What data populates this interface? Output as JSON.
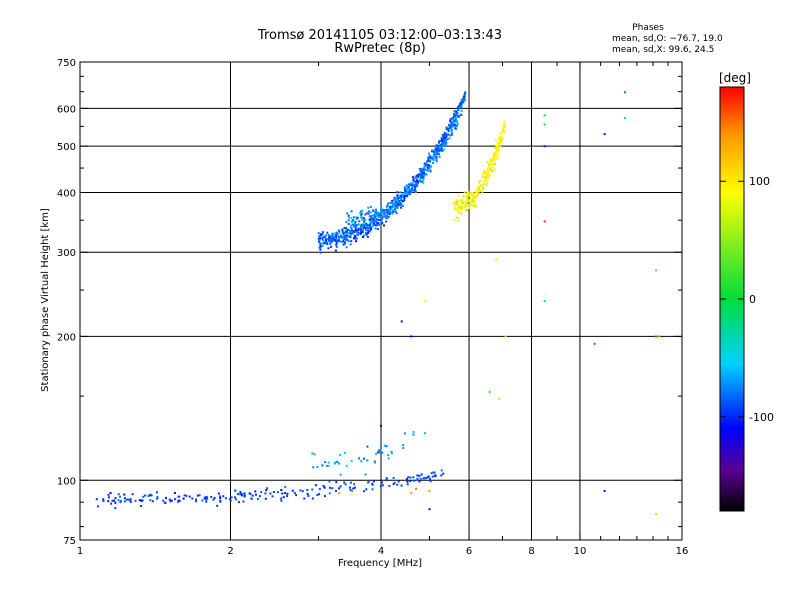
{
  "chart_data": {
    "type": "scatter",
    "title": "Tromsø 20141105 03:12:00–03:13:43",
    "subtitle": "RwPretec (8p)",
    "xlabel": "Frequency [MHz]",
    "ylabel": "Stationary phase Virtual Height [km]",
    "x_scale": "log",
    "y_scale": "log",
    "xlim": [
      1,
      16
    ],
    "ylim": [
      75,
      750
    ],
    "x_ticks": [
      1,
      2,
      4,
      6,
      8,
      10,
      16
    ],
    "y_ticks": [
      75,
      100,
      200,
      300,
      400,
      500,
      600,
      750
    ],
    "grid": true,
    "phases_box": {
      "title": "Phases",
      "line1": "mean, sd,O: −76.7, 19.0",
      "line2": "mean, sd,X: 99.6, 24.5"
    },
    "colorbar": {
      "label": "[deg]",
      "ticks": [
        100,
        0,
        -100
      ],
      "range": [
        -180,
        180
      ],
      "colormap": "rainbow"
    },
    "layers": [
      {
        "name": "",
        "kind": "band",
        "x_from": 1.05,
        "x_to": 5.4,
        "y_start": 91,
        "y_end": 103,
        "spread": 3,
        "phase": -95,
        "phase_sd": 15,
        "n": 220
      },
      {
        "name": "",
        "kind": "band",
        "x_from": 2.9,
        "x_to": 4.9,
        "y_start": 108,
        "y_end": 125,
        "spread": 6,
        "phase": -70,
        "phase_sd": 20,
        "n": 45
      },
      {
        "name": "",
        "kind": "band",
        "x_from": 3.0,
        "x_to": 5.9,
        "y_start": 318,
        "y_end": 640,
        "spread": 14,
        "phase": -85,
        "phase_sd": 22,
        "n": 650
      },
      {
        "name": "",
        "kind": "band",
        "x_from": 3.4,
        "x_to": 5.8,
        "y_start": 350,
        "y_end": 590,
        "spread": 14,
        "phase": -75,
        "phase_sd": 22,
        "n": 250
      },
      {
        "name": "",
        "kind": "band",
        "x_from": 5.6,
        "x_to": 7.1,
        "y_start": 375,
        "y_end": 560,
        "spread": 20,
        "phase": 90,
        "phase_sd": 25,
        "n": 230
      }
    ],
    "points": [
      {
        "x": 4.0,
        "y": 130,
        "phase": -110
      },
      {
        "x": 4.0,
        "y": 120,
        "phase": -60
      },
      {
        "x": 4.4,
        "y": 215,
        "phase": -110
      },
      {
        "x": 4.9,
        "y": 237,
        "phase": 100
      },
      {
        "x": 4.6,
        "y": 200,
        "phase": -110
      },
      {
        "x": 6.8,
        "y": 290,
        "phase": 100
      },
      {
        "x": 7.1,
        "y": 200,
        "phase": 110
      },
      {
        "x": 6.6,
        "y": 153,
        "phase": 20
      },
      {
        "x": 6.9,
        "y": 148,
        "phase": 110
      },
      {
        "x": 8.5,
        "y": 348,
        "phase": 170
      },
      {
        "x": 8.5,
        "y": 237,
        "phase": -60
      },
      {
        "x": 8.5,
        "y": 580,
        "phase": 0
      },
      {
        "x": 8.5,
        "y": 555,
        "phase": 10
      },
      {
        "x": 8.5,
        "y": 500,
        "phase": -100
      },
      {
        "x": 10.7,
        "y": 193,
        "phase": 170
      },
      {
        "x": 11.2,
        "y": 530,
        "phase": -110
      },
      {
        "x": 11.2,
        "y": 95,
        "phase": -110
      },
      {
        "x": 12.3,
        "y": 648,
        "phase": -80
      },
      {
        "x": 12.3,
        "y": 573,
        "phase": -40
      },
      {
        "x": 14.2,
        "y": 275,
        "phase": 30
      },
      {
        "x": 14.2,
        "y": 200,
        "phase": 160
      },
      {
        "x": 14.4,
        "y": 200,
        "phase": 30
      },
      {
        "x": 14.2,
        "y": 85,
        "phase": 110
      },
      {
        "x": 5.0,
        "y": 95,
        "phase": 140
      },
      {
        "x": 4.7,
        "y": 96,
        "phase": 150
      },
      {
        "x": 5.0,
        "y": 87,
        "phase": -110
      },
      {
        "x": 4.6,
        "y": 94,
        "phase": 140
      },
      {
        "x": 3.3,
        "y": 94,
        "phase": 140
      },
      {
        "x": 3.5,
        "y": 95,
        "phase": 150
      }
    ]
  }
}
